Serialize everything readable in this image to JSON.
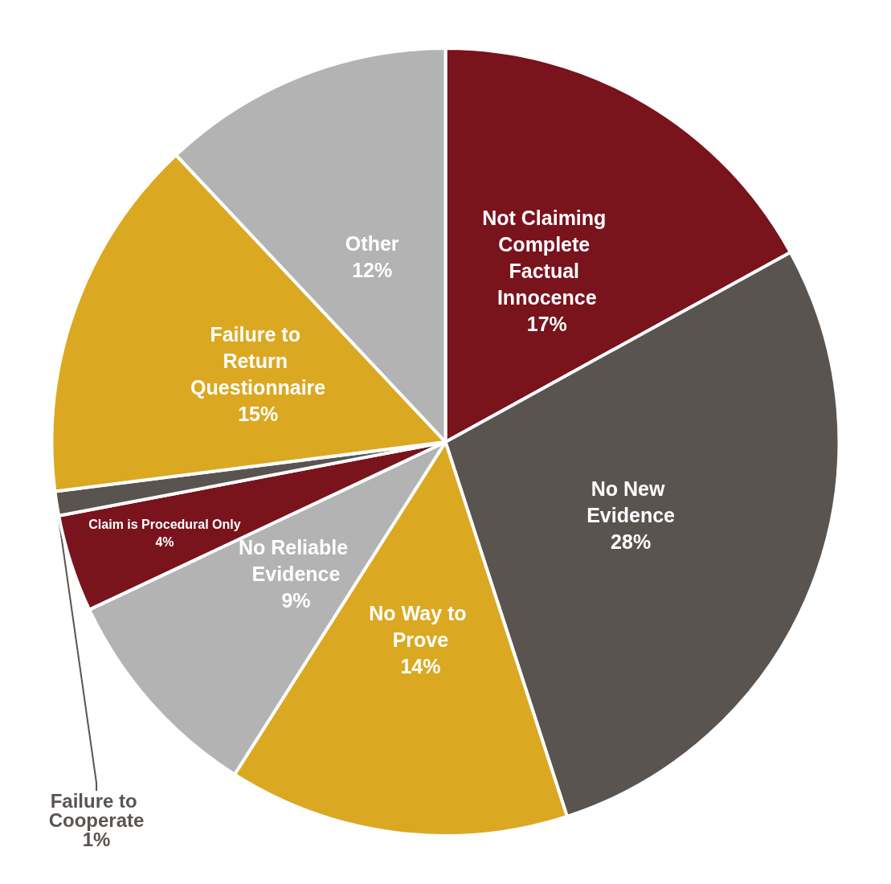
{
  "chart_data": {
    "type": "pie",
    "categories": [
      "Not Claiming Complete Factual Innocence",
      "No New Evidence",
      "No Way to Prove",
      "No Reliable Evidence",
      "Claim is Procedural Only",
      "Failure to Cooperate",
      "Failure to Return Questionnaire",
      "Other"
    ],
    "values": [
      17,
      28,
      14,
      9,
      4,
      1,
      15,
      12
    ],
    "value_labels": [
      "17%",
      "28%",
      "14%",
      "9%",
      "4%",
      "1%",
      "15%",
      "12%"
    ],
    "colors": [
      "#79131c",
      "#5a5451",
      "#dba822",
      "#b3b3b3",
      "#79131c",
      "#5a5451",
      "#dba822",
      "#b3b3b3"
    ],
    "data_labels": true,
    "legend": false
  }
}
